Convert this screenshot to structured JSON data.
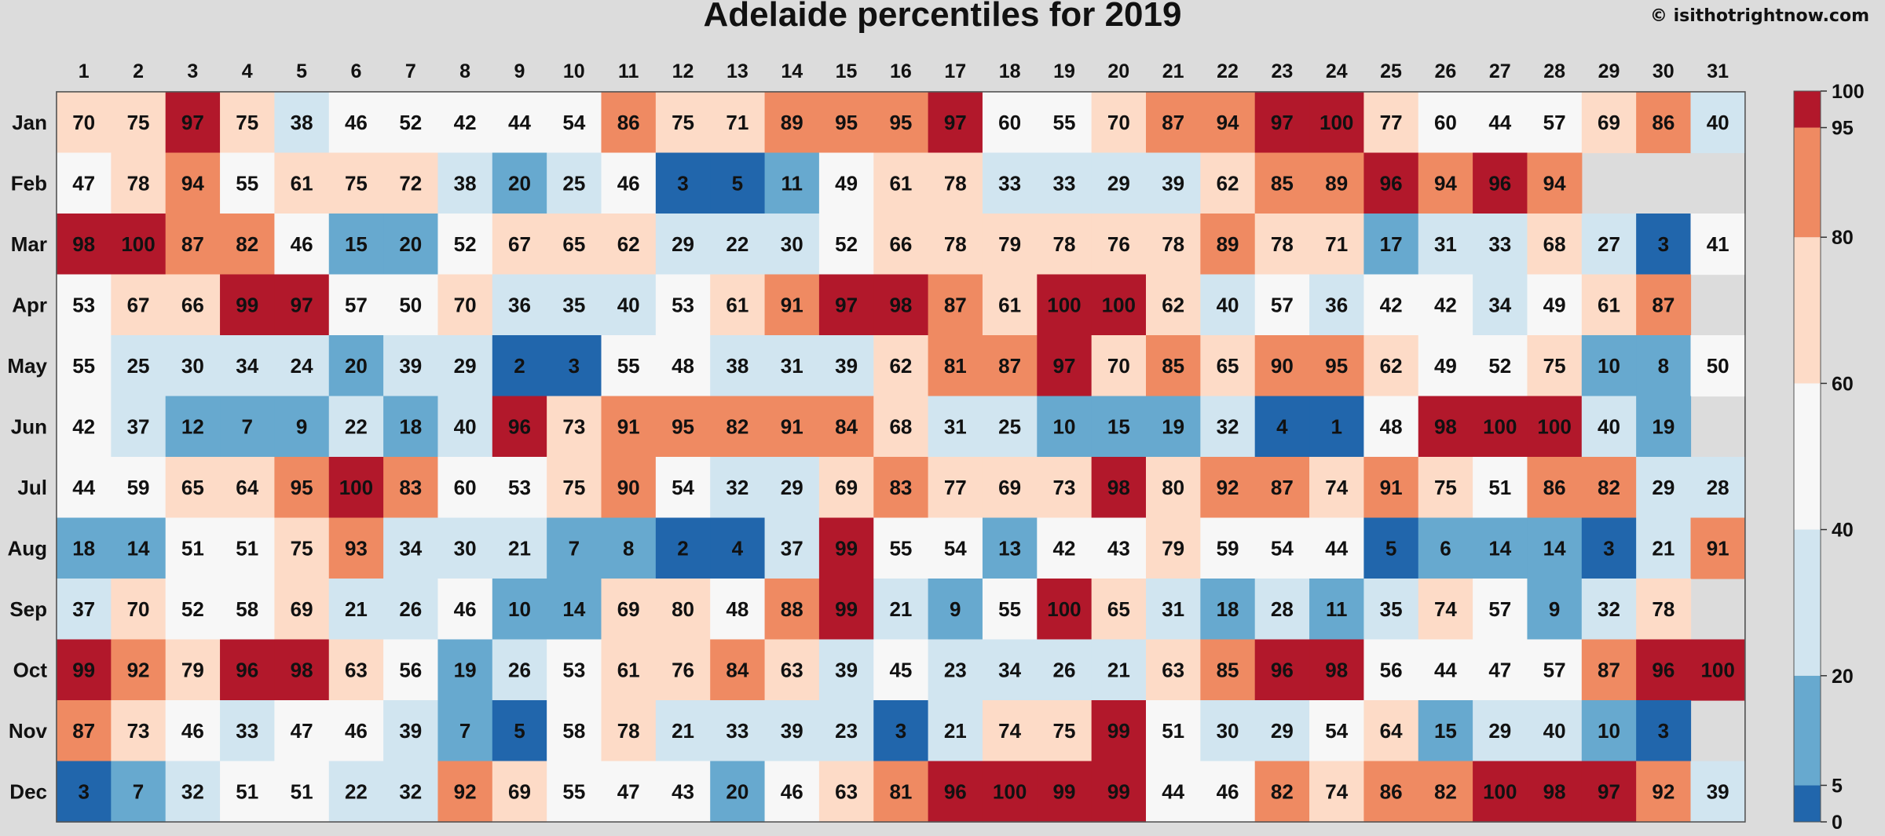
{
  "header": {
    "title": "Adelaide percentiles for 2019",
    "credit": "© isithotrightnow.com"
  },
  "chart_data": {
    "type": "heatmap",
    "title": "Adelaide percentiles for 2019",
    "x_categories": [
      "1",
      "2",
      "3",
      "4",
      "5",
      "6",
      "7",
      "8",
      "9",
      "10",
      "11",
      "12",
      "13",
      "14",
      "15",
      "16",
      "17",
      "18",
      "19",
      "20",
      "21",
      "22",
      "23",
      "24",
      "25",
      "26",
      "27",
      "28",
      "29",
      "30",
      "31"
    ],
    "y_categories": [
      "Jan",
      "Feb",
      "Mar",
      "Apr",
      "May",
      "Jun",
      "Jul",
      "Aug",
      "Sep",
      "Oct",
      "Nov",
      "Dec"
    ],
    "values": [
      [
        70,
        75,
        97,
        75,
        38,
        46,
        52,
        42,
        44,
        54,
        86,
        75,
        71,
        89,
        95,
        95,
        97,
        60,
        55,
        70,
        87,
        94,
        97,
        100,
        77,
        60,
        44,
        57,
        69,
        86,
        40
      ],
      [
        47,
        78,
        94,
        55,
        61,
        75,
        72,
        38,
        20,
        25,
        46,
        3,
        5,
        11,
        49,
        61,
        78,
        33,
        33,
        29,
        39,
        62,
        85,
        89,
        96,
        94,
        96,
        94,
        null,
        null,
        null
      ],
      [
        98,
        100,
        87,
        82,
        46,
        15,
        20,
        52,
        67,
        65,
        62,
        29,
        22,
        30,
        52,
        66,
        78,
        79,
        78,
        76,
        78,
        89,
        78,
        71,
        17,
        31,
        33,
        68,
        27,
        3,
        41
      ],
      [
        53,
        67,
        66,
        99,
        97,
        57,
        50,
        70,
        36,
        35,
        40,
        53,
        61,
        91,
        97,
        98,
        87,
        61,
        100,
        100,
        62,
        40,
        57,
        36,
        42,
        42,
        34,
        49,
        61,
        87,
        null
      ],
      [
        55,
        25,
        30,
        34,
        24,
        20,
        39,
        29,
        2,
        3,
        55,
        48,
        38,
        31,
        39,
        62,
        81,
        87,
        97,
        70,
        85,
        65,
        90,
        95,
        62,
        49,
        52,
        75,
        10,
        8,
        50
      ],
      [
        42,
        37,
        12,
        7,
        9,
        22,
        18,
        40,
        96,
        73,
        91,
        95,
        82,
        91,
        84,
        68,
        31,
        25,
        10,
        15,
        19,
        32,
        4,
        1,
        48,
        98,
        100,
        100,
        40,
        19,
        null
      ],
      [
        44,
        59,
        65,
        64,
        95,
        100,
        83,
        60,
        53,
        75,
        90,
        54,
        32,
        29,
        69,
        83,
        77,
        69,
        73,
        98,
        80,
        92,
        87,
        74,
        91,
        75,
        51,
        86,
        82,
        29,
        28
      ],
      [
        18,
        14,
        51,
        51,
        75,
        93,
        34,
        30,
        21,
        7,
        8,
        2,
        4,
        37,
        99,
        55,
        54,
        13,
        42,
        43,
        79,
        59,
        54,
        44,
        5,
        6,
        14,
        14,
        3,
        21,
        91
      ],
      [
        37,
        70,
        52,
        58,
        69,
        21,
        26,
        46,
        10,
        14,
        69,
        80,
        48,
        88,
        99,
        21,
        9,
        55,
        100,
        65,
        31,
        18,
        28,
        11,
        35,
        74,
        57,
        9,
        32,
        78,
        null
      ],
      [
        99,
        92,
        79,
        96,
        98,
        63,
        56,
        19,
        26,
        53,
        61,
        76,
        84,
        63,
        39,
        45,
        23,
        34,
        26,
        21,
        63,
        85,
        96,
        98,
        56,
        44,
        47,
        57,
        87,
        96,
        100
      ],
      [
        87,
        73,
        46,
        33,
        47,
        46,
        39,
        7,
        5,
        58,
        78,
        21,
        33,
        39,
        23,
        3,
        21,
        74,
        75,
        99,
        51,
        30,
        29,
        54,
        64,
        15,
        29,
        40,
        10,
        3,
        null
      ],
      [
        3,
        7,
        32,
        51,
        51,
        22,
        32,
        92,
        69,
        55,
        47,
        43,
        20,
        46,
        63,
        81,
        96,
        100,
        99,
        99,
        44,
        46,
        82,
        74,
        86,
        82,
        100,
        98,
        97,
        92,
        39
      ]
    ],
    "bins": [
      {
        "min": 0,
        "max": 5,
        "color": "#2166ac"
      },
      {
        "min": 5,
        "max": 20,
        "color": "#67a9cf"
      },
      {
        "min": 20,
        "max": 40,
        "color": "#d1e5f0"
      },
      {
        "min": 40,
        "max": 60,
        "color": "#f7f7f7"
      },
      {
        "min": 60,
        "max": 80,
        "color": "#fddbc7"
      },
      {
        "min": 80,
        "max": 95,
        "color": "#ef8a62"
      },
      {
        "min": 95,
        "max": 100,
        "color": "#b2182b"
      }
    ],
    "missing_color": "#dcdcdc",
    "colorbar_ticks": [
      0,
      5,
      20,
      40,
      60,
      80,
      95,
      100
    ],
    "range": [
      0,
      100
    ]
  }
}
